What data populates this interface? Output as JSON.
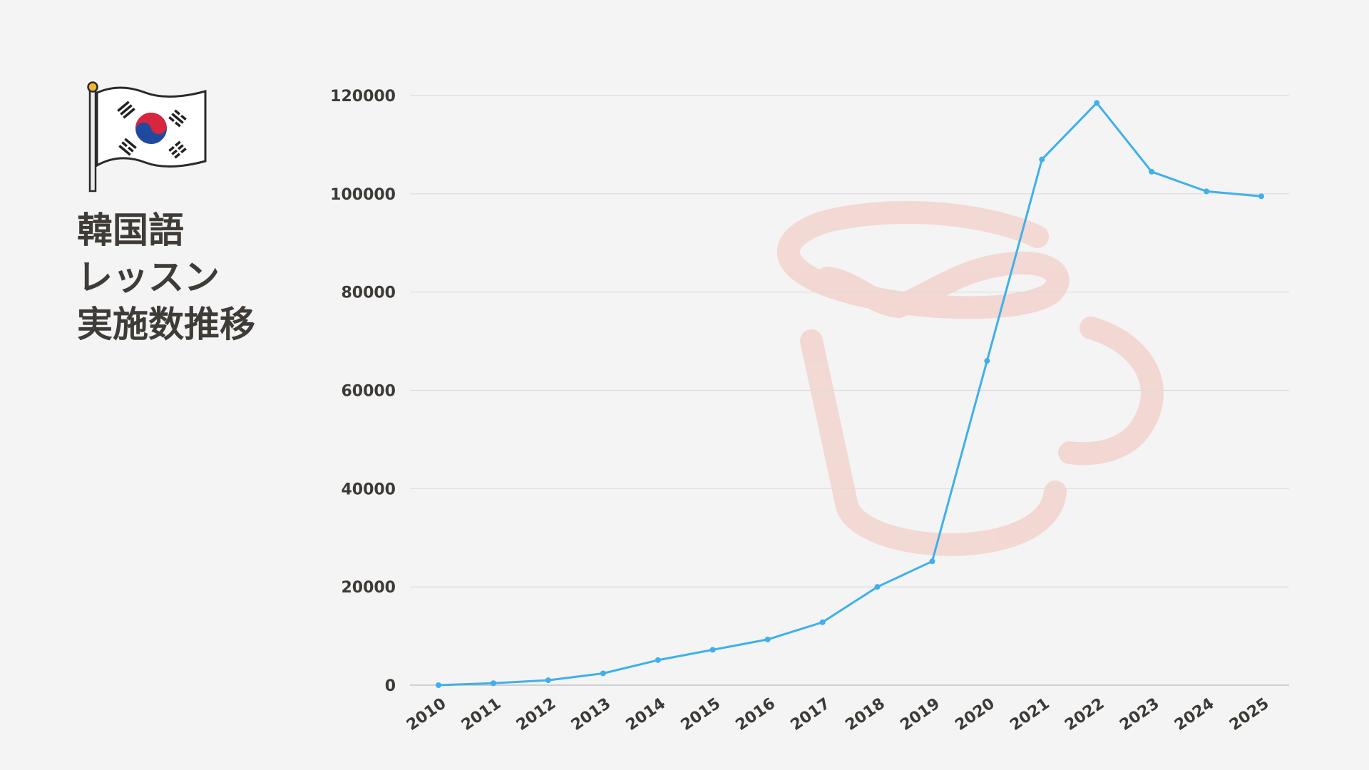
{
  "page": {
    "title_lines": [
      "韓国語",
      "レッスン",
      "実施数推移"
    ]
  },
  "icons": {
    "flag": "south-korea-flag-icon",
    "watermark": "coffee-cup-icon"
  },
  "colors": {
    "background": "#f4f4f4",
    "line": "#3fb0ea",
    "text": "#3d3a36",
    "grid": "#dcdcdc",
    "watermark": "#f2d3cd"
  },
  "chart_data": {
    "type": "line",
    "title": "",
    "xlabel": "",
    "ylabel": "",
    "categories": [
      "2010",
      "2011",
      "2012",
      "2013",
      "2014",
      "2015",
      "2016",
      "2017",
      "2018",
      "2019",
      "2020",
      "2021",
      "2022",
      "2023",
      "2024",
      "2025"
    ],
    "series": [
      {
        "values": [
          0,
          400,
          1000,
          2400,
          5100,
          7200,
          9300,
          12800,
          20000,
          25200,
          66000,
          107000,
          118500,
          104500,
          100500,
          99500
        ]
      }
    ],
    "ylim": [
      0,
      120000
    ],
    "yticks": [
      "0",
      "20000",
      "40000",
      "60000",
      "80000",
      "100000",
      "120000"
    ],
    "grid": "horizontal",
    "legend": "none"
  }
}
